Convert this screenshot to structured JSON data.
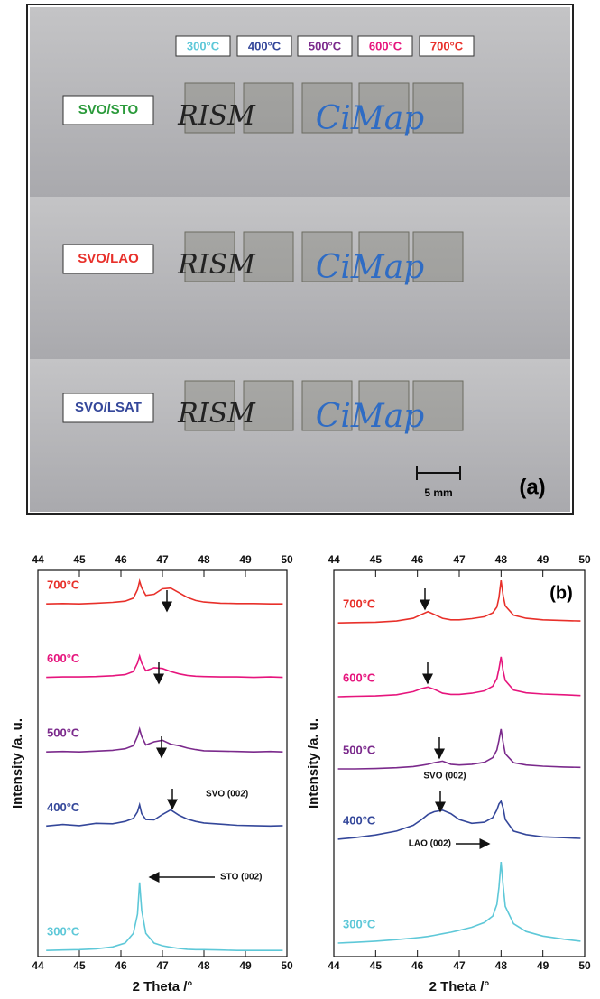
{
  "photo": {
    "temperatures": [
      {
        "text": "300°C",
        "color": "#5ec8d8"
      },
      {
        "text": "400°C",
        "color": "#34479a"
      },
      {
        "text": "500°C",
        "color": "#7b2a8c"
      },
      {
        "text": "600°C",
        "color": "#e6157d"
      },
      {
        "text": "700°C",
        "color": "#e8302a"
      }
    ],
    "samples": [
      {
        "text": "SVO/STO",
        "color": "#2a9a3a"
      },
      {
        "text": "SVO/LAO",
        "color": "#e8302a"
      },
      {
        "text": "SVO/LSAT",
        "color": "#34479a"
      }
    ],
    "handwriting": [
      "RISM",
      "CiMap"
    ],
    "scale": "5 mm",
    "label": "(a)"
  },
  "chart_data": [
    {
      "type": "line",
      "xlabel": "2 Theta /°",
      "ylabel": "Intensity /a. u.",
      "xlim": [
        44,
        50
      ],
      "xticks": [
        44,
        45,
        46,
        47,
        48,
        49,
        50
      ],
      "ylim": [
        0,
        100
      ],
      "x": [
        44.2,
        44.6,
        45.0,
        45.4,
        45.8,
        46.1,
        46.3,
        46.4,
        46.45,
        46.5,
        46.6,
        46.8,
        47.0,
        47.2,
        47.4,
        47.6,
        47.8,
        48.0,
        48.4,
        48.8,
        49.2,
        49.6,
        49.9
      ],
      "series": [
        {
          "name": "700°C",
          "color": "#e8302a",
          "values": [
            91.3,
            91.4,
            91.3,
            91.5,
            91.7,
            92.0,
            92.8,
            95.0,
            97.2,
            95.5,
            93.5,
            93.8,
            95.2,
            95.4,
            94.2,
            93.0,
            92.2,
            91.8,
            91.5,
            91.4,
            91.4,
            91.3,
            91.3
          ]
        },
        {
          "name": "600°C",
          "color": "#e6157d",
          "values": [
            72.3,
            72.4,
            72.4,
            72.5,
            72.7,
            73.0,
            73.8,
            76.0,
            77.8,
            76.0,
            74.0,
            74.8,
            74.6,
            73.8,
            73.2,
            72.8,
            72.6,
            72.5,
            72.4,
            72.4,
            72.3,
            72.4,
            72.3
          ]
        },
        {
          "name": "500°C",
          "color": "#7b2a8c",
          "values": [
            53.0,
            53.1,
            53.0,
            53.2,
            53.4,
            53.8,
            54.6,
            57.0,
            58.9,
            57.0,
            54.8,
            55.6,
            56.0,
            55.0,
            54.6,
            54.0,
            53.6,
            53.3,
            53.2,
            53.1,
            53.0,
            53.1,
            53.0
          ]
        },
        {
          "name": "400°C",
          "color": "#34479a",
          "values": [
            33.8,
            34.2,
            33.9,
            34.5,
            34.4,
            35.0,
            35.8,
            37.5,
            39.3,
            37.0,
            35.5,
            35.4,
            36.8,
            38.0,
            36.6,
            35.6,
            35.0,
            34.6,
            34.3,
            34.0,
            33.9,
            33.8,
            33.9
          ]
        },
        {
          "name": "300°C",
          "color": "#5ec8d8",
          "values": [
            1.6,
            1.7,
            1.8,
            2.0,
            2.5,
            3.5,
            6.0,
            11.0,
            19.2,
            12.0,
            6.0,
            3.5,
            2.8,
            2.4,
            2.1,
            1.9,
            1.8,
            1.8,
            1.7,
            1.6,
            1.6,
            1.6,
            1.6
          ]
        }
      ],
      "annotations": [
        "SVO (002)",
        "STO (002)"
      ]
    },
    {
      "type": "line",
      "xlabel": "2 Theta /°",
      "ylabel": "Intensity /a. u.",
      "panel_label": "(b)",
      "xlim": [
        44,
        50
      ],
      "xticks": [
        44,
        45,
        46,
        47,
        48,
        49,
        50
      ],
      "ylim": [
        0,
        100
      ],
      "x": [
        44.1,
        44.5,
        45.0,
        45.5,
        45.9,
        46.1,
        46.25,
        46.4,
        46.6,
        46.8,
        47.0,
        47.3,
        47.6,
        47.8,
        47.9,
        47.95,
        48.0,
        48.05,
        48.1,
        48.3,
        48.6,
        49.0,
        49.5,
        49.9
      ],
      "series": [
        {
          "name": "700°C",
          "color": "#e8302a",
          "values": [
            86.4,
            86.5,
            86.6,
            86.9,
            87.6,
            88.6,
            89.3,
            88.6,
            87.6,
            87.2,
            87.2,
            87.5,
            88.0,
            89.0,
            90.5,
            93.0,
            97.4,
            93.5,
            90.8,
            88.4,
            87.6,
            87.2,
            87.0,
            86.9
          ]
        },
        {
          "name": "600°C",
          "color": "#e6157d",
          "values": [
            67.3,
            67.4,
            67.5,
            67.8,
            68.6,
            69.4,
            69.8,
            69.2,
            68.2,
            67.9,
            67.9,
            68.2,
            68.8,
            70.0,
            72.0,
            74.5,
            77.6,
            74.0,
            71.5,
            69.0,
            68.3,
            68.0,
            67.8,
            67.6
          ]
        },
        {
          "name": "500°C",
          "color": "#7b2a8c",
          "values": [
            48.6,
            48.6,
            48.7,
            48.9,
            49.2,
            49.5,
            49.8,
            50.2,
            50.6,
            49.8,
            49.6,
            49.8,
            50.3,
            51.5,
            53.5,
            56.0,
            58.9,
            55.5,
            52.5,
            50.2,
            49.6,
            49.3,
            49.1,
            49.0
          ]
        },
        {
          "name": "400°C",
          "color": "#34479a",
          "values": [
            30.4,
            30.8,
            31.5,
            32.5,
            34.0,
            35.5,
            36.8,
            37.5,
            37.9,
            37.0,
            35.5,
            34.5,
            34.8,
            36.0,
            38.0,
            39.5,
            40.2,
            38.5,
            35.5,
            32.5,
            31.6,
            31.0,
            30.8,
            30.6
          ]
        },
        {
          "name": "300°C",
          "color": "#5ec8d8",
          "values": [
            3.5,
            3.7,
            4.0,
            4.4,
            4.8,
            5.0,
            5.2,
            5.5,
            5.9,
            6.3,
            6.8,
            7.6,
            8.8,
            10.5,
            13.5,
            18.0,
            24.5,
            18.5,
            13.0,
            8.5,
            6.5,
            5.3,
            4.5,
            4.0
          ]
        }
      ],
      "annotations": [
        "SVO (002)",
        "LAO (002)"
      ]
    }
  ]
}
